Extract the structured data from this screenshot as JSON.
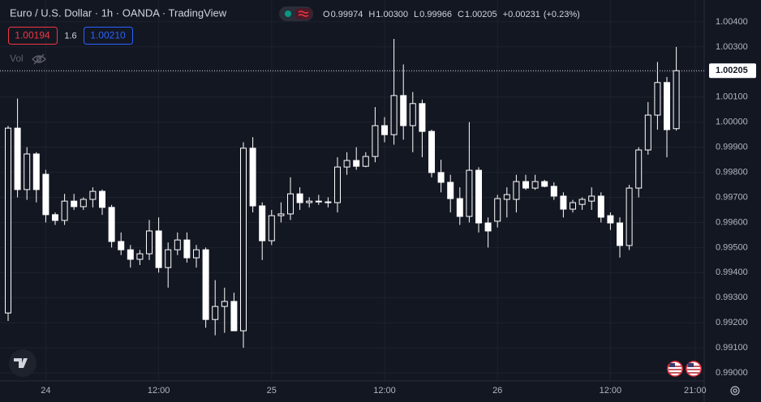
{
  "header": {
    "title": "Euro / U.S. Dollar · 1h · OANDA · TradingView",
    "ohlc": [
      {
        "label": "O",
        "value": "0.99974"
      },
      {
        "label": "H",
        "value": "1.00300"
      },
      {
        "label": "L",
        "value": "0.99966"
      },
      {
        "label": "C",
        "value": "1.00205"
      }
    ],
    "change": "+0.00231",
    "change_pct": "(+0.23%)",
    "sell": "1.00194",
    "spread": "1.6",
    "buy": "1.00210",
    "volume": "Vol"
  },
  "chart_data": {
    "type": "candlestick",
    "open": [
      0.99239,
      0.99976,
      0.99731,
      0.99873,
      0.99792,
      0.99631,
      0.99608,
      0.99685,
      0.99663,
      0.99692,
      0.99724,
      0.9966,
      0.99524,
      0.99491,
      0.99453,
      0.99475,
      0.99566,
      0.9942,
      0.99491,
      0.9953,
      0.99459,
      0.99491,
      0.99213,
      0.99265,
      0.99285,
      0.99168,
      0.99896,
      0.99666,
      0.99527,
      0.99627,
      0.99634,
      0.99714,
      0.99679,
      0.99685,
      0.99682,
      0.99679,
      0.99821,
      0.99847,
      0.99824,
      0.99863,
      0.99986,
      0.9995,
      1.00106,
      0.99986,
      1.00074,
      0.99963,
      0.99799,
      0.9976,
      0.99695,
      0.99624,
      0.99808,
      0.99598,
      0.99605,
      0.99692,
      0.99692,
      0.99763,
      0.99737,
      0.99763,
      0.99744,
      0.99705,
      0.99653,
      0.99672,
      0.99685,
      0.99705,
      0.99627,
      0.99598,
      0.99508,
      0.99737,
      0.99889,
      1.00028,
      1.00158,
      0.99974
    ],
    "high": [
      0.99985,
      1.00094,
      0.999,
      0.9988,
      0.9981,
      0.9964,
      0.99714,
      0.99714,
      0.997,
      0.9974,
      0.99731,
      0.9967,
      0.9956,
      0.9951,
      0.9949,
      0.9961,
      0.9962,
      0.9952,
      0.9956,
      0.9956,
      0.9951,
      0.995,
      0.9937,
      0.9934,
      0.9932,
      0.9992,
      0.9994,
      0.9968,
      0.9965,
      0.9968,
      0.9978,
      0.9974,
      0.997,
      0.9971,
      0.997,
      0.9986,
      0.9988,
      0.999,
      0.9988,
      1.0006,
      1.0002,
      1.00332,
      1.0023,
      1.0012,
      1.0009,
      0.9997,
      0.9985,
      0.9979,
      0.9974,
      1.0,
      0.9982,
      0.9962,
      0.9971,
      0.9974,
      0.9979,
      0.9979,
      0.9979,
      0.9977,
      0.9976,
      0.9972,
      0.9969,
      0.997,
      0.9974,
      0.9972,
      0.9964,
      0.9962,
      0.9975,
      0.999,
      1.0008,
      1.0024,
      1.0018,
      1.003
    ],
    "low": [
      0.99207,
      0.997,
      0.9969,
      0.9968,
      0.996,
      0.9959,
      0.9959,
      0.9965,
      0.9965,
      0.9966,
      0.9963,
      0.995,
      0.9947,
      0.9942,
      0.9943,
      0.9945,
      0.994,
      0.9934,
      0.9947,
      0.9944,
      0.9942,
      0.9918,
      0.9915,
      0.9916,
      0.9918,
      0.991,
      0.9964,
      0.9945,
      0.9951,
      0.996,
      0.9961,
      0.9965,
      0.9966,
      0.9967,
      0.9966,
      0.9964,
      0.9979,
      0.9981,
      0.9982,
      0.9984,
      0.9992,
      0.9991,
      0.9993,
      0.9988,
      0.9986,
      0.9978,
      0.9972,
      0.9964,
      0.9959,
      0.996,
      0.9956,
      0.995,
      0.9958,
      0.9962,
      0.9964,
      0.9973,
      0.9973,
      0.9974,
      0.9969,
      0.9962,
      0.9964,
      0.9965,
      0.9965,
      0.996,
      0.9957,
      0.9946,
      0.9949,
      0.997,
      0.9987,
      0.9997,
      0.9986,
      0.99966
    ],
    "close": [
      0.99976,
      0.99731,
      0.99873,
      0.99731,
      0.99631,
      0.99608,
      0.99685,
      0.99663,
      0.99692,
      0.99724,
      0.9966,
      0.99524,
      0.99491,
      0.99453,
      0.99475,
      0.99566,
      0.9942,
      0.99491,
      0.9953,
      0.99459,
      0.99491,
      0.99213,
      0.99265,
      0.99285,
      0.99168,
      0.99896,
      0.99666,
      0.99527,
      0.99627,
      0.99634,
      0.99714,
      0.99679,
      0.99685,
      0.99682,
      0.99679,
      0.99821,
      0.99847,
      0.99824,
      0.99863,
      0.99986,
      0.9995,
      1.00106,
      0.99986,
      1.00074,
      0.99963,
      0.99799,
      0.9976,
      0.99695,
      0.99624,
      0.99808,
      0.99598,
      0.99566,
      0.99695,
      0.99711,
      0.99763,
      0.99737,
      0.99763,
      0.99744,
      0.99705,
      0.99653,
      0.99679,
      0.99692,
      0.99705,
      0.99621,
      0.99598,
      0.99508,
      0.99737,
      0.99889,
      1.00028,
      1.00158,
      0.9997,
      1.00205
    ],
    "up_color": "#ffffff",
    "down_color": "#ffffff",
    "up_hollow": true,
    "ylim": [
      0.98968,
      1.00487
    ],
    "yticks": [
      {
        "value": 0.99,
        "label": "0.99000"
      },
      {
        "value": 0.991,
        "label": "0.99100"
      },
      {
        "value": 0.992,
        "label": "0.99200"
      },
      {
        "value": 0.993,
        "label": "0.99300"
      },
      {
        "value": 0.994,
        "label": "0.99400"
      },
      {
        "value": 0.995,
        "label": "0.99500"
      },
      {
        "value": 0.996,
        "label": "0.99600"
      },
      {
        "value": 0.997,
        "label": "0.99700"
      },
      {
        "value": 0.998,
        "label": "0.99800"
      },
      {
        "value": 0.999,
        "label": "0.99900"
      },
      {
        "value": 1.0,
        "label": "1.00000"
      },
      {
        "value": 1.001,
        "label": "1.00100"
      },
      {
        "value": 1.002,
        "label": "1.00200"
      },
      {
        "value": 1.003,
        "label": "1.00300"
      },
      {
        "value": 1.004,
        "label": "1.00400"
      }
    ],
    "xticks": [
      {
        "value": 4,
        "label": "24"
      },
      {
        "value": 16,
        "label": "12:00"
      },
      {
        "value": 28,
        "label": "25"
      },
      {
        "value": 40,
        "label": "12:00"
      },
      {
        "value": 52,
        "label": "26"
      },
      {
        "value": 64,
        "label": "12:00"
      },
      {
        "value": 73,
        "label": "21:00"
      }
    ],
    "last_price": {
      "value": 1.00205,
      "label": "1.00205"
    },
    "grid": true
  }
}
